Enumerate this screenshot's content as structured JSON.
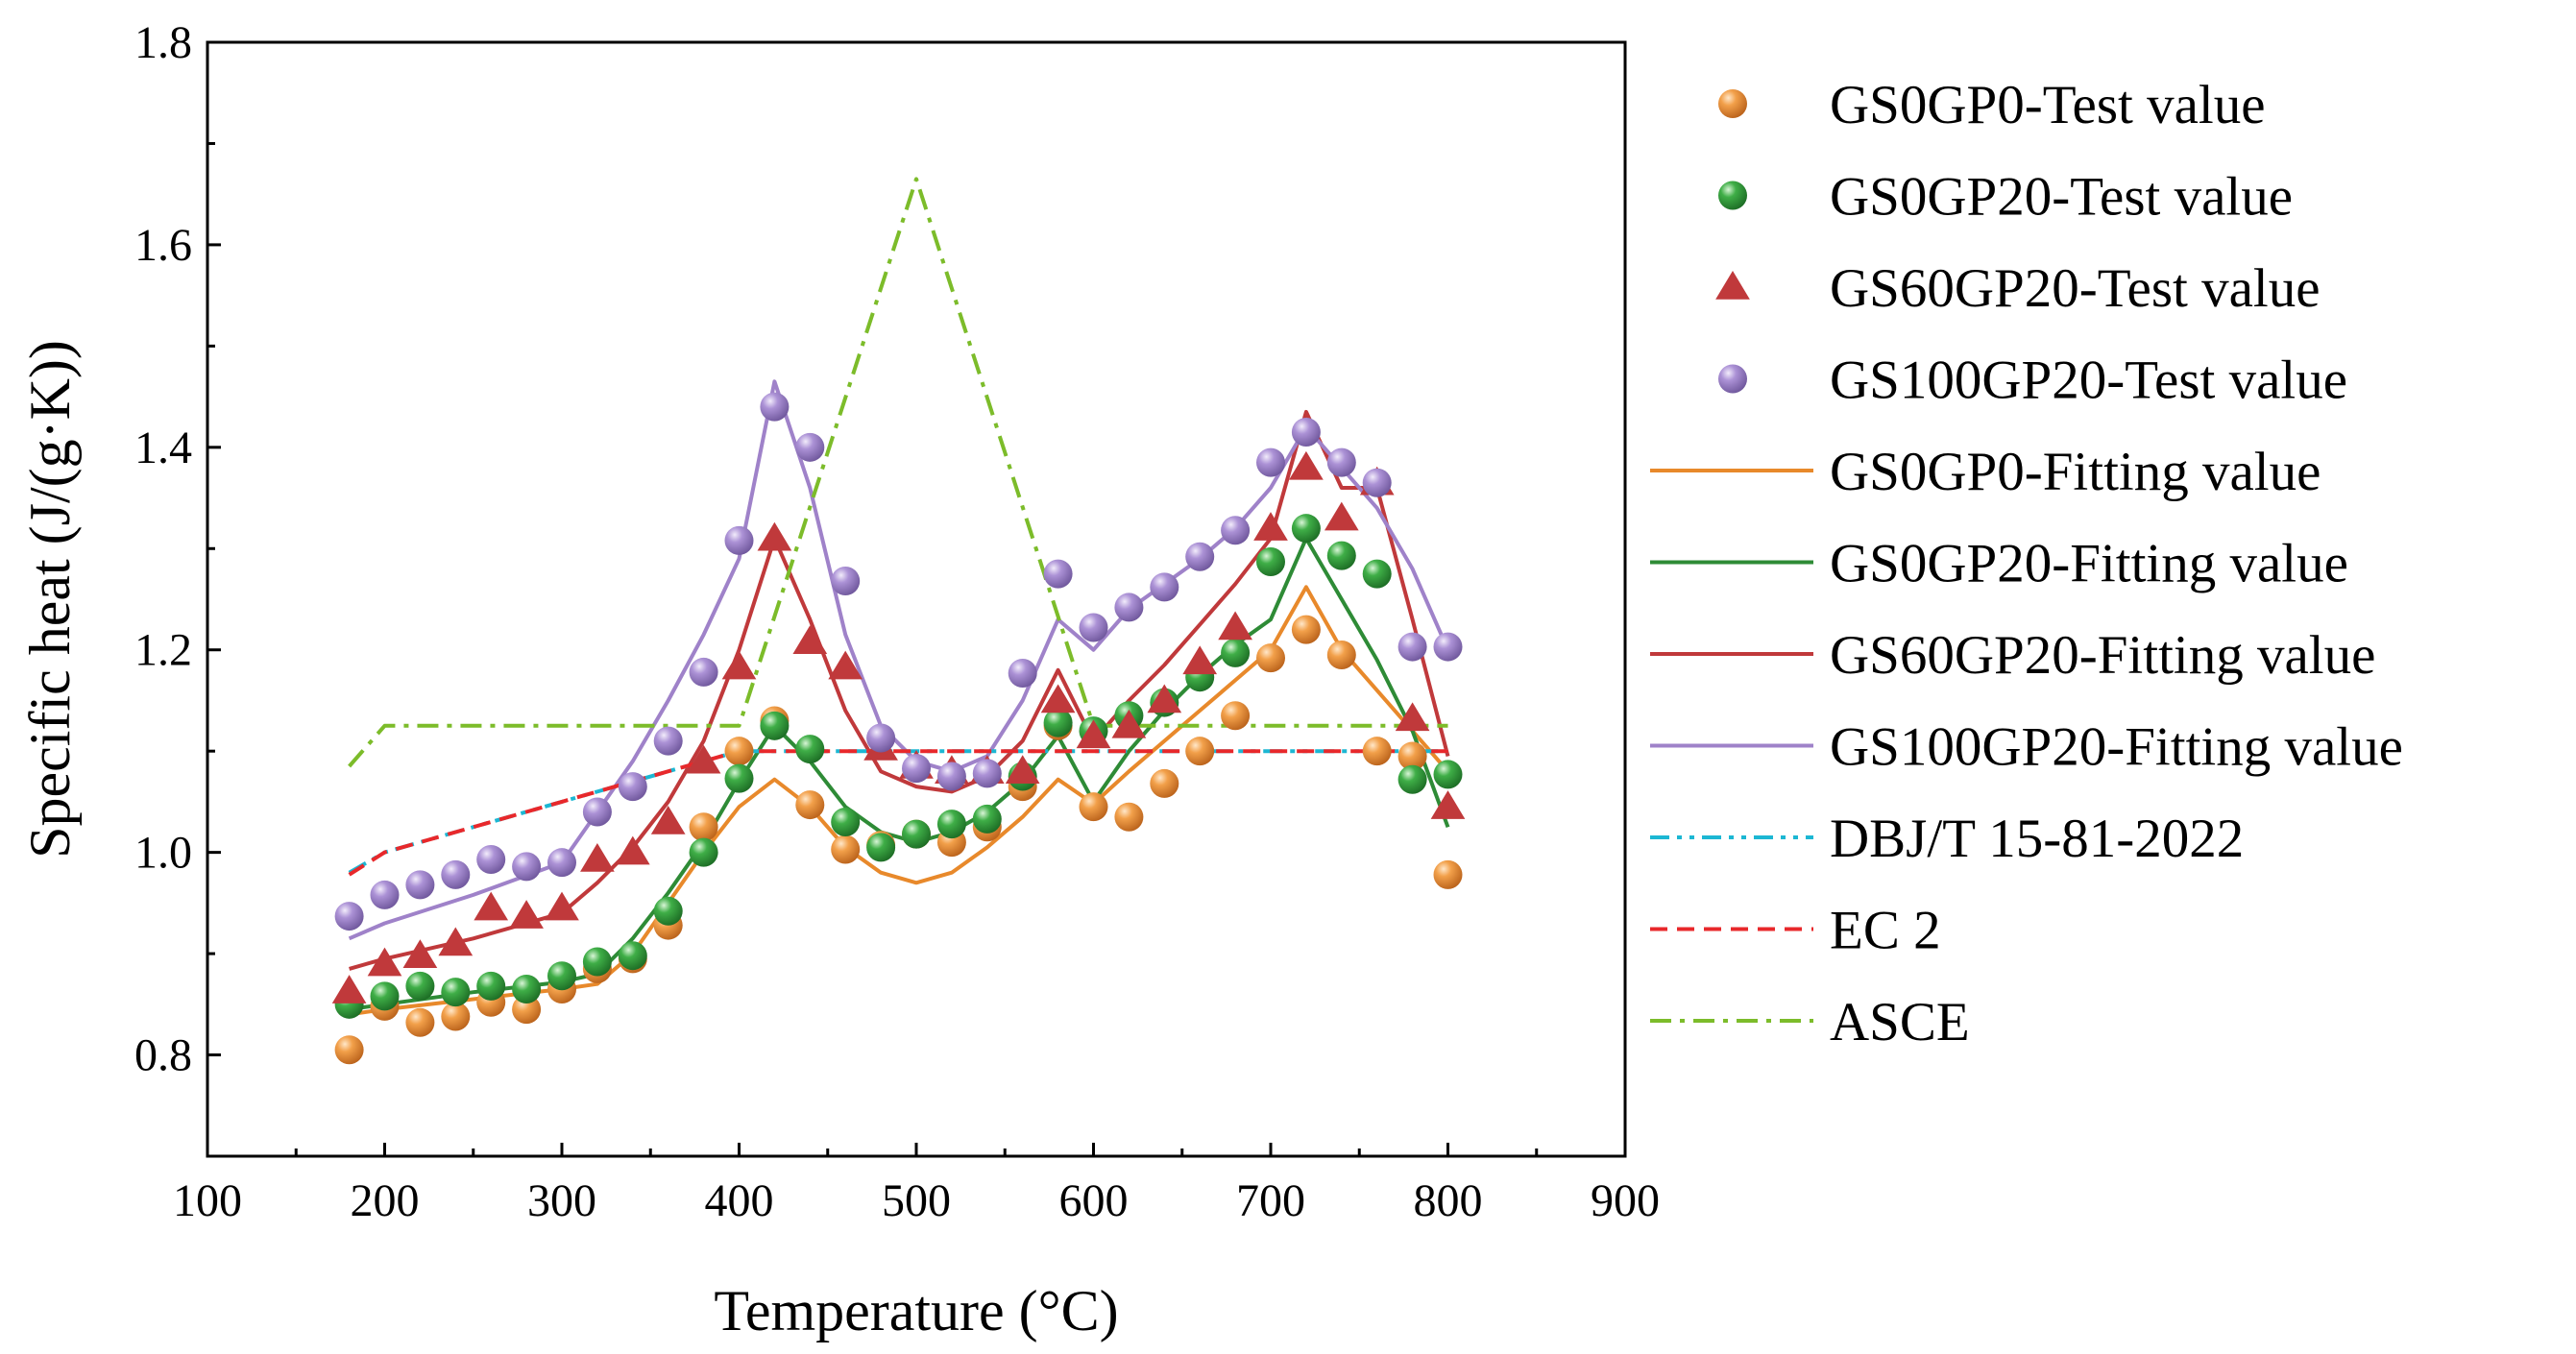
{
  "chart_data": {
    "type": "line",
    "xlabel": "Temperature (°C)",
    "ylabel": "Specific heat (J/(g·K))",
    "xlim": [
      100,
      900
    ],
    "ylim": [
      0.7,
      1.8
    ],
    "xticks": [
      100,
      200,
      300,
      400,
      500,
      600,
      700,
      800,
      900
    ],
    "yticks": [
      0.8,
      1.0,
      1.2,
      1.4,
      1.6,
      1.8
    ],
    "legend_position": "right",
    "series": [
      {
        "name": "GS0GP0-Test value",
        "kind": "scatter",
        "marker": "sphere",
        "color": "#e8892b",
        "x": [
          180,
          200,
          220,
          240,
          260,
          280,
          300,
          320,
          340,
          360,
          380,
          400,
          420,
          440,
          460,
          480,
          500,
          520,
          540,
          560,
          580,
          600,
          620,
          640,
          660,
          680,
          700,
          720,
          740,
          760,
          780,
          800
        ],
        "y": [
          0.805,
          0.848,
          0.832,
          0.838,
          0.852,
          0.845,
          0.865,
          0.885,
          0.895,
          0.928,
          1.025,
          1.1,
          1.13,
          1.047,
          1.003,
          1.007,
          1.018,
          1.01,
          1.025,
          1.065,
          1.125,
          1.045,
          1.035,
          1.068,
          1.1,
          1.135,
          1.192,
          1.22,
          1.195,
          1.1,
          1.095,
          0.978
        ]
      },
      {
        "name": "GS0GP20-Test value",
        "kind": "scatter",
        "marker": "sphere",
        "color": "#2e9a3a",
        "x": [
          180,
          200,
          220,
          240,
          260,
          280,
          300,
          320,
          340,
          360,
          380,
          400,
          420,
          440,
          460,
          480,
          500,
          520,
          540,
          560,
          580,
          600,
          620,
          640,
          660,
          680,
          700,
          720,
          740,
          760,
          780,
          800
        ],
        "y": [
          0.85,
          0.858,
          0.868,
          0.862,
          0.868,
          0.865,
          0.878,
          0.892,
          0.898,
          0.942,
          1.0,
          1.073,
          1.125,
          1.102,
          1.03,
          1.005,
          1.018,
          1.028,
          1.033,
          1.075,
          1.128,
          1.12,
          1.135,
          1.148,
          1.173,
          1.197,
          1.287,
          1.32,
          1.293,
          1.275,
          1.072,
          1.077
        ]
      },
      {
        "name": "GS60GP20-Test value",
        "kind": "scatter",
        "marker": "triangle",
        "color": "#c0393b",
        "x": [
          180,
          200,
          220,
          240,
          260,
          280,
          300,
          320,
          340,
          360,
          380,
          400,
          420,
          440,
          460,
          480,
          500,
          520,
          540,
          560,
          580,
          600,
          620,
          640,
          660,
          680,
          700,
          720,
          740,
          760,
          780,
          800
        ],
        "y": [
          0.863,
          0.89,
          0.898,
          0.91,
          0.945,
          0.937,
          0.945,
          0.993,
          1.0,
          1.03,
          1.09,
          1.183,
          1.31,
          1.208,
          1.183,
          1.103,
          1.085,
          1.08,
          1.08,
          1.08,
          1.15,
          1.115,
          1.125,
          1.15,
          1.188,
          1.222,
          1.32,
          1.38,
          1.33,
          1.365,
          1.132,
          1.045
        ]
      },
      {
        "name": "GS100GP20-Test value",
        "kind": "scatter",
        "marker": "sphere",
        "color": "#9f82c9",
        "x": [
          180,
          200,
          220,
          240,
          260,
          280,
          300,
          320,
          340,
          360,
          380,
          400,
          420,
          440,
          460,
          480,
          500,
          520,
          540,
          560,
          580,
          600,
          620,
          640,
          660,
          680,
          700,
          720,
          740,
          760,
          780,
          800
        ],
        "y": [
          0.937,
          0.958,
          0.968,
          0.978,
          0.993,
          0.986,
          0.99,
          1.04,
          1.065,
          1.11,
          1.178,
          1.308,
          1.44,
          1.4,
          1.268,
          1.113,
          1.083,
          1.075,
          1.078,
          1.177,
          1.275,
          1.222,
          1.242,
          1.262,
          1.292,
          1.318,
          1.385,
          1.415,
          1.385,
          1.365,
          1.203,
          1.203
        ]
      },
      {
        "name": "GS0GP0-Fitting value",
        "kind": "line",
        "dash": "solid",
        "color": "#e8892b",
        "x": [
          180,
          200,
          250,
          300,
          320,
          340,
          360,
          380,
          400,
          420,
          440,
          460,
          480,
          500,
          520,
          540,
          560,
          580,
          600,
          620,
          640,
          660,
          680,
          700,
          720,
          740,
          760,
          780,
          800
        ],
        "y": [
          0.84,
          0.845,
          0.855,
          0.865,
          0.87,
          0.9,
          0.95,
          1.0,
          1.045,
          1.072,
          1.045,
          1.005,
          0.98,
          0.97,
          0.98,
          1.005,
          1.035,
          1.072,
          1.048,
          1.08,
          1.11,
          1.14,
          1.17,
          1.2,
          1.262,
          1.2,
          1.16,
          1.12,
          1.08
        ]
      },
      {
        "name": "GS0GP20-Fitting value",
        "kind": "line",
        "dash": "solid",
        "color": "#2e8b36",
        "x": [
          180,
          200,
          250,
          300,
          320,
          340,
          360,
          380,
          400,
          420,
          440,
          460,
          480,
          500,
          520,
          540,
          560,
          580,
          600,
          620,
          640,
          660,
          680,
          700,
          720,
          740,
          760,
          780,
          800
        ],
        "y": [
          0.845,
          0.85,
          0.862,
          0.872,
          0.88,
          0.915,
          0.96,
          1.01,
          1.07,
          1.125,
          1.09,
          1.045,
          1.02,
          1.01,
          1.02,
          1.04,
          1.07,
          1.115,
          1.05,
          1.1,
          1.14,
          1.175,
          1.205,
          1.23,
          1.31,
          1.25,
          1.19,
          1.12,
          1.025
        ]
      },
      {
        "name": "GS60GP20-Fitting value",
        "kind": "line",
        "dash": "solid",
        "color": "#c0393b",
        "x": [
          180,
          200,
          250,
          300,
          320,
          340,
          360,
          380,
          400,
          420,
          440,
          460,
          480,
          500,
          520,
          540,
          560,
          580,
          600,
          620,
          640,
          660,
          680,
          700,
          720,
          740,
          760,
          780,
          800
        ],
        "y": [
          0.885,
          0.895,
          0.915,
          0.94,
          0.97,
          1.005,
          1.05,
          1.11,
          1.2,
          1.31,
          1.23,
          1.14,
          1.08,
          1.065,
          1.06,
          1.075,
          1.11,
          1.18,
          1.11,
          1.15,
          1.185,
          1.225,
          1.265,
          1.31,
          1.435,
          1.36,
          1.36,
          1.23,
          1.095
        ]
      },
      {
        "name": "GS100GP20-Fitting value",
        "kind": "line",
        "dash": "solid",
        "color": "#9f82c9",
        "x": [
          180,
          200,
          250,
          300,
          320,
          340,
          360,
          380,
          400,
          420,
          440,
          460,
          480,
          500,
          520,
          540,
          560,
          580,
          600,
          620,
          640,
          660,
          680,
          700,
          720,
          740,
          760,
          780,
          800
        ],
        "y": [
          0.915,
          0.93,
          0.958,
          0.99,
          1.04,
          1.09,
          1.15,
          1.215,
          1.29,
          1.465,
          1.36,
          1.215,
          1.125,
          1.09,
          1.08,
          1.095,
          1.15,
          1.23,
          1.2,
          1.24,
          1.265,
          1.29,
          1.32,
          1.36,
          1.42,
          1.38,
          1.34,
          1.28,
          1.2
        ]
      },
      {
        "name": "DBJ/T 15-81-2022",
        "kind": "line",
        "dash": "dashdotdot",
        "color": "#1cb7d3",
        "x": [
          180,
          200,
          300,
          400,
          800
        ],
        "y": [
          0.98,
          1.0,
          1.05,
          1.1,
          1.1
        ]
      },
      {
        "name": "EC 2",
        "kind": "line",
        "dash": "dash",
        "color": "#e8282b",
        "x": [
          180,
          200,
          300,
          400,
          800
        ],
        "y": [
          0.978,
          1.0,
          1.05,
          1.1,
          1.1
        ]
      },
      {
        "name": "ASCE",
        "kind": "line",
        "dash": "dashdot",
        "color": "#7cbc2a",
        "x": [
          180,
          200,
          400,
          500,
          600,
          800
        ],
        "y": [
          1.085,
          1.125,
          1.125,
          1.665,
          1.125,
          1.125
        ]
      }
    ]
  }
}
